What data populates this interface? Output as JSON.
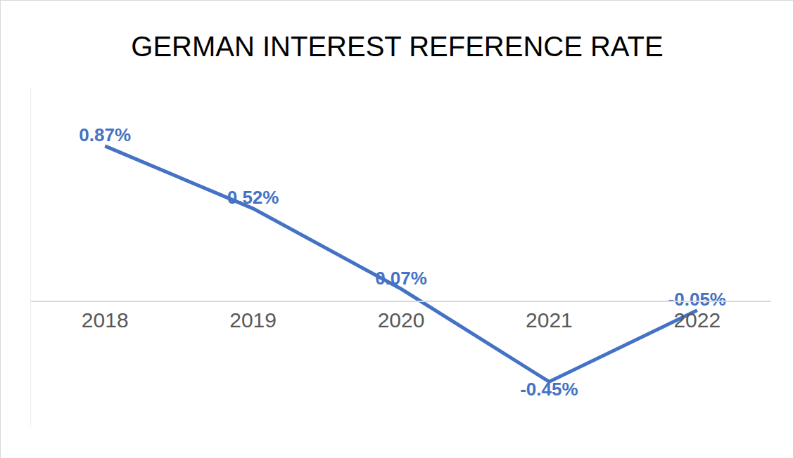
{
  "chart_data": {
    "type": "line",
    "title": "GERMAN INTEREST REFERENCE RATE",
    "categories": [
      "2018",
      "2019",
      "2020",
      "2021",
      "2022"
    ],
    "values": [
      0.87,
      0.52,
      0.07,
      -0.45,
      -0.05
    ],
    "value_labels": [
      "0.87%",
      "0.52%",
      "0.07%",
      "-0.45%",
      "-0.05%"
    ],
    "color": "#4472c4",
    "ylim": [
      -0.7,
      1.2
    ],
    "yticks": [
      0
    ],
    "data_labels": true,
    "tick_labels": "x",
    "grid": true
  }
}
